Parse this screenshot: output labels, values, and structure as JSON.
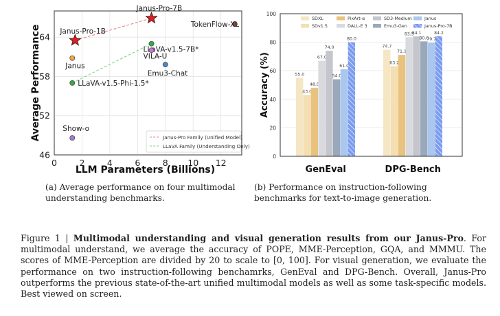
{
  "chart_data": [
    {
      "type": "scatter",
      "xlabel": "LLM Parameters (Billions)",
      "ylabel": "Average Performance",
      "xlim": [
        0,
        13.5
      ],
      "ylim": [
        46,
        68
      ],
      "xticks": [
        "0",
        "2",
        "4",
        "6",
        "8",
        "10",
        "12"
      ],
      "yticks": [
        "46",
        "52",
        "58",
        "64"
      ],
      "grid": true,
      "legend_position": "bottom-right",
      "legend": [
        {
          "label": "Janus-Pro Family (Unified Model)",
          "color": "#e8828a",
          "style": "dashed"
        },
        {
          "label": "LLaVA Family (Understanding Only)",
          "color": "#7ed38b",
          "style": "dashed"
        }
      ],
      "points": [
        {
          "name": "Janus-Pro-1B",
          "x": 1.5,
          "y": 63.5,
          "marker": "star",
          "color": "#d72027"
        },
        {
          "name": "Janus-Pro-7B",
          "x": 7.0,
          "y": 66.9,
          "marker": "star",
          "color": "#d72027"
        },
        {
          "name": "TokenFlow-XL",
          "x": 13.0,
          "y": 66.0,
          "marker": "circle",
          "color": "#8b4a3c"
        },
        {
          "name": "Janus",
          "x": 1.3,
          "y": 60.8,
          "marker": "circle",
          "color": "#f2a14a"
        },
        {
          "name": "LLaVA-v1.5-7B*",
          "x": 7.0,
          "y": 63.0,
          "marker": "circle",
          "color": "#39a84a"
        },
        {
          "name": "VILA-U",
          "x": 7.0,
          "y": 62.0,
          "marker": "circle",
          "color": "#c975d6"
        },
        {
          "name": "Emu3-Chat",
          "x": 8.0,
          "y": 59.8,
          "marker": "circle",
          "color": "#4f86c6"
        },
        {
          "name": "LLaVA-v1.5-Phi-1.5*",
          "x": 1.3,
          "y": 57.0,
          "marker": "circle",
          "color": "#39a84a"
        },
        {
          "name": "Show-o",
          "x": 1.3,
          "y": 48.6,
          "marker": "circle",
          "color": "#a07ad6"
        }
      ],
      "lines": [
        {
          "family": "Janus-Pro Family (Unified Model)",
          "from": "Janus-Pro-1B",
          "to": "Janus-Pro-7B",
          "color": "#e8828a"
        },
        {
          "family": "LLaVA Family (Understanding Only)",
          "from": "LLaVA-v1.5-Phi-1.5*",
          "to": "LLaVA-v1.5-7B*",
          "color": "#7ed38b"
        }
      ]
    },
    {
      "type": "bar",
      "ylabel": "Accuracy (%)",
      "ylim": [
        0,
        100
      ],
      "yticks": [
        "0",
        "20",
        "40",
        "60",
        "80",
        "100"
      ],
      "categories": [
        "GenEval",
        "DPG-Bench"
      ],
      "grid": true,
      "legend_position": "top",
      "series": [
        {
          "name": "SDXL",
          "color": "#f5e6c4",
          "values": [
            55.0,
            74.7
          ],
          "labels": [
            "55.0",
            "74.7"
          ]
        },
        {
          "name": "SDv1.5",
          "color": "#f3dfb2",
          "values": [
            43.0,
            63.2
          ],
          "labels": [
            "43.0",
            "63.2"
          ]
        },
        {
          "name": "PixArt-α",
          "color": "#e9c27d",
          "values": [
            48.0,
            71.1
          ],
          "labels": [
            "48.0",
            "71.1"
          ]
        },
        {
          "name": "DALL-E 3",
          "color": "#d9dade",
          "values": [
            67.0,
            83.5
          ],
          "labels": [
            "67.0",
            "83.5"
          ]
        },
        {
          "name": "SD3-Medium",
          "color": "#c4c6cc",
          "values": [
            74.0,
            84.1
          ],
          "labels": [
            "74.0",
            "84.1"
          ]
        },
        {
          "name": "Emu3-Gen",
          "color": "#9aa8bc",
          "values": [
            54.0,
            80.6
          ],
          "labels": [
            "54.0",
            "80.6"
          ]
        },
        {
          "name": "Janus",
          "color": "#aac7ee",
          "values": [
            61.0,
            79.7
          ],
          "labels": [
            "61.0",
            "79.7"
          ]
        },
        {
          "name": "Janus-Pro-7B",
          "color": "#7c9cf0",
          "values": [
            80.0,
            84.2
          ],
          "labels": [
            "80.0",
            "84.2"
          ],
          "hatched": true
        }
      ]
    }
  ],
  "subcaptions": {
    "a": "(a) Average performance on four multimodal understanding benchmarks.",
    "b": "(b) Performance on instruction-following benchmarks for text-to-image generation."
  },
  "caption": {
    "label": "Figure 1 | ",
    "bold": "Multimodal understanding and visual generation results from our Janus-Pro",
    "rest": ". For multimodal understand, we average the accuracy of POPE, MME-Perception, GQA, and MMMU. The scores of MME-Perception are divided by 20 to scale to [0, 100]. For visual generation, we evaluate the performance on two instruction-following benchamrks, GenEval and DPG-Bench. Overall, Janus-Pro outperforms the previous state-of-the-art unified multimodal models as well as some task-specific models. Best viewed on screen."
  }
}
